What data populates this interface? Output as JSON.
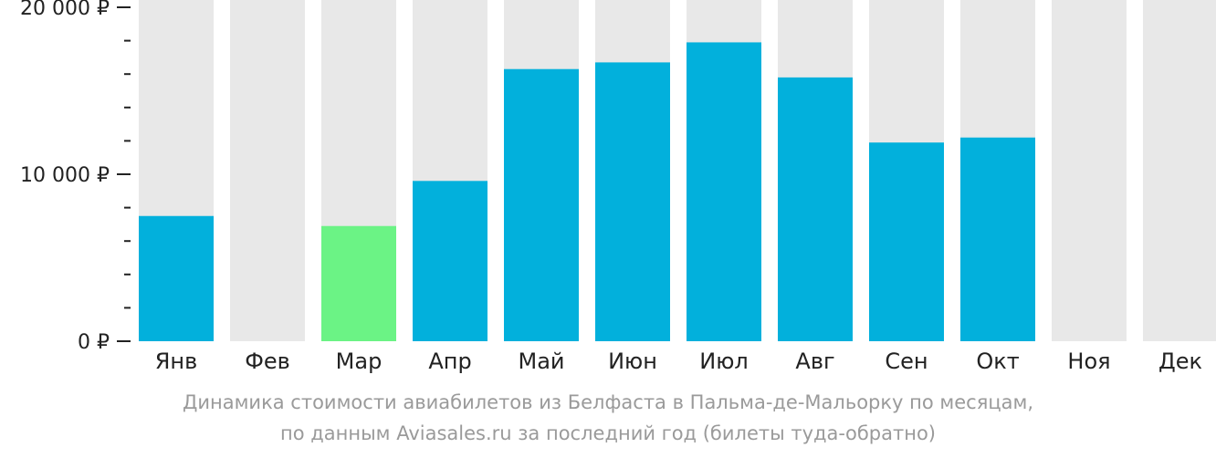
{
  "chart_data": {
    "type": "bar",
    "categories": [
      "Янв",
      "Фев",
      "Мар",
      "Апр",
      "Май",
      "Июн",
      "Июл",
      "Авг",
      "Сен",
      "Окт",
      "Ноя",
      "Дек"
    ],
    "values": [
      7500,
      null,
      6900,
      9600,
      16300,
      16700,
      17900,
      15800,
      11900,
      12200,
      null,
      null
    ],
    "highlight_index": 2,
    "ylim": [
      0,
      20000
    ],
    "yticks": [
      {
        "value": 0,
        "label": "0 ₽"
      },
      {
        "value": 10000,
        "label": "10 000 ₽"
      },
      {
        "value": 20000,
        "label": "20 000 ₽"
      }
    ],
    "minor_tick_step": 2000,
    "xlabel": "",
    "ylabel": "",
    "colors": {
      "bar": "#02b0dc",
      "highlight": "#6bf385",
      "background": "#e8e8e8",
      "axis": "#222222"
    }
  },
  "caption": {
    "line1": "Динамика стоимости авиабилетов из Белфаста в Пальма-де-Мальорку по месяцам,",
    "line2": "по данным Aviasales.ru за последний год (билеты туда-обратно)"
  }
}
